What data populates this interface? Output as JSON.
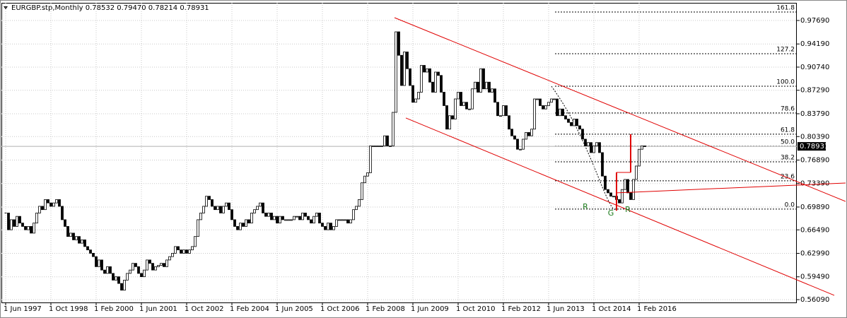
{
  "chart_data": {
    "type": "candlestick",
    "title": "EURGBP.stp,Monthly  0.78532 0.79470 0.78214 0.78931",
    "categories": [
      "1 Jun 1997",
      null,
      null,
      null,
      null,
      null,
      null,
      null,
      null,
      null,
      null,
      null,
      null,
      null,
      null,
      null,
      "1 Oct 1998",
      null,
      null,
      null,
      null,
      null,
      null,
      null,
      null,
      null,
      null,
      null,
      null,
      null,
      null,
      null,
      "1 Feb 2000",
      null,
      null,
      null,
      null,
      null,
      null,
      null,
      null,
      null,
      null,
      null,
      null,
      null,
      null,
      null,
      "1 Jun 2001",
      null,
      null,
      null,
      null,
      null,
      null,
      null,
      null,
      null,
      null,
      null,
      null,
      null,
      null,
      null,
      "1 Oct 2002",
      null,
      null,
      null,
      null,
      null,
      null,
      null,
      null,
      null,
      null,
      null,
      null,
      null,
      null,
      null,
      "1 Feb 2004",
      null,
      null,
      null,
      null,
      null,
      null,
      null,
      null,
      null,
      null,
      null,
      null,
      null,
      null,
      null,
      "1 Jun 2005",
      null,
      null,
      null,
      null,
      null,
      null,
      null,
      null,
      null,
      null,
      null,
      null,
      null,
      null,
      null,
      "1 Oct 2006",
      null,
      null,
      null,
      null,
      null,
      null,
      null,
      null,
      null,
      null,
      null,
      null,
      null,
      null,
      null,
      "1 Feb 2008",
      null,
      null,
      null,
      null,
      null,
      null,
      null,
      null,
      null,
      null,
      null,
      null,
      null,
      null,
      null,
      "1 Jun 2009",
      null,
      null,
      null,
      null,
      null,
      null,
      null,
      null,
      null,
      null,
      null,
      null,
      null,
      null,
      null,
      "1 Oct 2010",
      null,
      null,
      null,
      null,
      null,
      null,
      null,
      null,
      null,
      null,
      null,
      null,
      null,
      null,
      null,
      "1 Feb 2012",
      null,
      null,
      null,
      null,
      null,
      null,
      null,
      null,
      null,
      null,
      null,
      null,
      null,
      null,
      null,
      "1 Jun 2013",
      null,
      null,
      null,
      null,
      null,
      null,
      null,
      null,
      null,
      null,
      null,
      null,
      null,
      null,
      null,
      "1 Oct 2014",
      null,
      null,
      null,
      null,
      null,
      null,
      null,
      null,
      null,
      null,
      null,
      null,
      null,
      null,
      null,
      "1 Feb 2016",
      null,
      null
    ],
    "close": [
      0.69,
      0.665,
      0.68,
      0.67,
      0.685,
      0.675,
      0.67,
      0.665,
      0.67,
      0.66,
      0.675,
      0.69,
      0.7,
      0.695,
      0.71,
      0.705,
      0.7,
      0.705,
      0.71,
      0.7,
      0.68,
      0.67,
      0.655,
      0.66,
      0.65,
      0.655,
      0.645,
      0.65,
      0.64,
      0.635,
      0.63,
      0.625,
      0.61,
      0.62,
      0.605,
      0.6,
      0.61,
      0.6,
      0.59,
      0.595,
      0.585,
      0.575,
      0.59,
      0.6,
      0.605,
      0.615,
      0.61,
      0.6,
      0.595,
      0.605,
      0.62,
      0.615,
      0.605,
      0.61,
      0.612,
      0.615,
      0.61,
      0.62,
      0.625,
      0.63,
      0.64,
      0.635,
      0.63,
      0.635,
      0.63,
      0.635,
      0.64,
      0.655,
      0.68,
      0.69,
      0.7,
      0.715,
      0.71,
      0.7,
      0.695,
      0.7,
      0.69,
      0.7,
      0.705,
      0.695,
      0.68,
      0.67,
      0.665,
      0.675,
      0.67,
      0.68,
      0.675,
      0.69,
      0.695,
      0.7,
      0.705,
      0.69,
      0.685,
      0.69,
      0.68,
      0.685,
      0.675,
      0.685,
      0.68,
      0.68,
      0.68,
      0.68,
      0.685,
      0.685,
      0.68,
      0.69,
      0.685,
      0.68,
      0.675,
      0.685,
      0.69,
      0.675,
      0.67,
      0.665,
      0.675,
      0.665,
      0.67,
      0.68,
      0.68,
      0.68,
      0.68,
      0.675,
      0.68,
      0.695,
      0.7,
      0.71,
      0.735,
      0.745,
      0.75,
      0.79,
      0.79,
      0.79,
      0.79,
      0.79,
      0.805,
      0.79,
      0.79,
      0.84,
      0.96,
      0.925,
      0.88,
      0.93,
      0.905,
      0.88,
      0.855,
      0.86,
      0.87,
      0.91,
      0.9,
      0.905,
      0.885,
      0.87,
      0.9,
      0.895,
      0.87,
      0.85,
      0.815,
      0.835,
      0.83,
      0.86,
      0.87,
      0.85,
      0.855,
      0.845,
      0.845,
      0.875,
      0.885,
      0.87,
      0.905,
      0.875,
      0.885,
      0.87,
      0.875,
      0.855,
      0.835,
      0.835,
      0.85,
      0.835,
      0.815,
      0.805,
      0.8,
      0.785,
      0.785,
      0.8,
      0.81,
      0.805,
      0.815,
      0.86,
      0.86,
      0.85,
      0.845,
      0.85,
      0.855,
      0.86,
      0.86,
      0.835,
      0.845,
      0.835,
      0.83,
      0.825,
      0.82,
      0.83,
      0.82,
      0.815,
      0.8,
      0.79,
      0.795,
      0.78,
      0.79,
      0.795,
      0.78,
      0.745,
      0.725,
      0.72,
      0.715,
      0.715,
      0.71,
      0.705,
      0.725,
      0.74,
      0.72,
      0.71,
      0.74,
      0.76,
      0.785,
      0.79,
      0.78931
    ],
    "ylim": [
      0.5567,
      1.0032
    ],
    "yticks": [
      {
        "value": 0.9769,
        "label": "0.97690"
      },
      {
        "value": 0.9419,
        "label": "0.94190"
      },
      {
        "value": 0.9074,
        "label": "0.90740"
      },
      {
        "value": 0.8729,
        "label": "0.87290"
      },
      {
        "value": 0.8379,
        "label": "0.83790"
      },
      {
        "value": 0.8039,
        "label": "0.80390"
      },
      {
        "value": 0.7689,
        "label": "0.76890"
      },
      {
        "value": 0.7339,
        "label": "0.73390"
      },
      {
        "value": 0.6989,
        "label": "0.69890"
      },
      {
        "value": 0.6649,
        "label": "0.66490"
      },
      {
        "value": 0.6299,
        "label": "0.62990"
      },
      {
        "value": 0.5949,
        "label": "0.59490"
      },
      {
        "value": 0.5609,
        "label": "0.56090"
      }
    ],
    "grid": true,
    "current_price": {
      "value": 0.78931,
      "label": "0.78931"
    },
    "fibo": {
      "levels": [
        161.8,
        127.2,
        {
          "value": 100,
          "label": "100.0"
        },
        78.6,
        61.8,
        {
          "value": 50,
          "label": "50.0"
        },
        38.2,
        23.6,
        {
          "value": 0,
          "label": "0.0"
        }
      ],
      "prices": [
        0.9895,
        0.9274,
        0.879,
        0.839,
        0.8074,
        0.7895,
        0.7663,
        0.7379,
        0.6958
      ]
    },
    "trendlines": [
      {
        "x": [
          137.5,
          297
        ],
        "y": [
          0.9811,
          0.7073
        ],
        "color": "#e00000"
      },
      {
        "x": [
          141.5,
          293
        ],
        "y": [
          0.8316,
          0.5673
        ],
        "color": "#e00000"
      },
      {
        "x": [
          216,
          297
        ],
        "y": [
          0.72,
          0.7347
        ],
        "color": "#e00000"
      },
      {
        "x": [
          216,
          216
        ],
        "y": [
          0.6935,
          0.7505
        ],
        "color": "#e00000"
      },
      {
        "x": [
          221,
          221
        ],
        "y": [
          0.8074,
          0.7505
        ],
        "color": "#e00000"
      },
      {
        "x": [
          216,
          221
        ],
        "y": [
          0.7505,
          0.7505
        ],
        "color": "#e00000"
      }
    ],
    "annotations": [
      {
        "text": "R",
        "x": 205,
        "y": 0.699
      },
      {
        "text": "G",
        "x": 214,
        "y": 0.6895
      },
      {
        "text": "R",
        "x": 220,
        "y": 0.6945
      }
    ],
    "annotation_color": "#1a7a1a"
  }
}
